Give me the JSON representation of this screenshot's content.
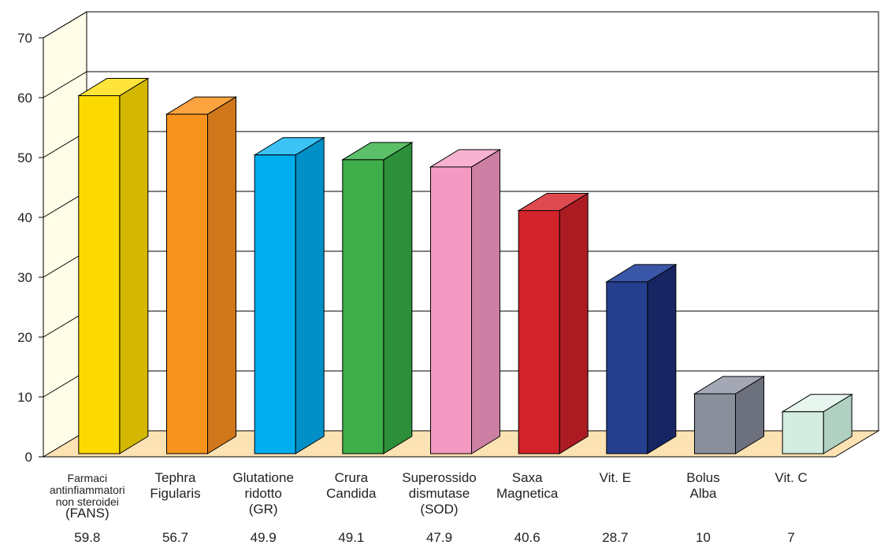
{
  "chart_data": {
    "type": "bar",
    "title": "",
    "xlabel": "",
    "ylabel": "",
    "ylim": [
      0,
      70
    ],
    "yticks": [
      0,
      10,
      20,
      30,
      40,
      50,
      60,
      70
    ],
    "grid": true,
    "style": "3d",
    "categories": [
      "Farmaci antinfiammatori non steroidei (FANS)",
      "Tephra Figularis",
      "Glutatione ridotto (GR)",
      "Crura Candida",
      "Superossido dismutase (SOD)",
      "Saxa Magnetica",
      "Vit. E",
      "Bolus Alba",
      "Vit. C"
    ],
    "category_lines": [
      [
        "Farmaci",
        "antinfiammatori",
        "non steroidei",
        "(FANS)"
      ],
      [
        "Tephra",
        "Figularis"
      ],
      [
        "Glutatione",
        "ridotto",
        "(GR)"
      ],
      [
        "Crura",
        "Candida"
      ],
      [
        "Superossido",
        "dismutase",
        "(SOD)"
      ],
      [
        "Saxa",
        "Magnetica"
      ],
      [
        "Vit. E"
      ],
      [
        "Bolus",
        "Alba"
      ],
      [
        "Vit. C"
      ]
    ],
    "values": [
      59.8,
      56.7,
      49.9,
      49.1,
      47.9,
      40.6,
      28.7,
      10,
      7
    ],
    "value_labels": [
      "59.8",
      "56.7",
      "49.9",
      "49.1",
      "47.9",
      "40.6",
      "28.7",
      "10",
      "7"
    ],
    "colors": [
      "#FCDA00",
      "#F7941D",
      "#00AEEF",
      "#3DAE4A",
      "#F49AC2",
      "#D2232A",
      "#253F8E",
      "#8A8F9C",
      "#D3EDE0"
    ],
    "side_colors": [
      "#D4B700",
      "#CF771A",
      "#0090C7",
      "#2E8F3B",
      "#CC7FA2",
      "#AC1B22",
      "#172663",
      "#6D717D",
      "#B0D1C2"
    ],
    "top_colors": [
      "#FFE43A",
      "#FAA33F",
      "#3CC2F4",
      "#5BC067",
      "#F7B2D1",
      "#DE4A4F",
      "#3A56A8",
      "#A3A8B4",
      "#E6F6EE"
    ],
    "wall_color": "#FFFDE8",
    "floor_color": "#FDE2B4"
  }
}
